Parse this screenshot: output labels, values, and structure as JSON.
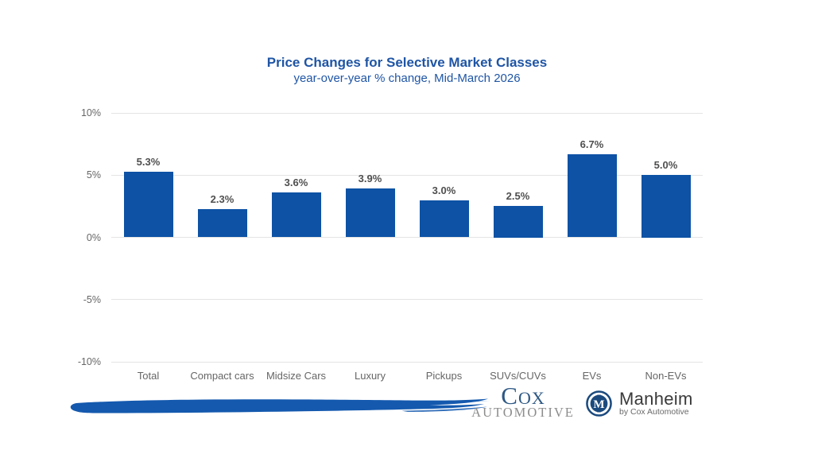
{
  "chart_data": {
    "type": "bar",
    "title": "Price Changes for Selective Market Classes",
    "subtitle": "year-over-year % change, Mid-March 2026",
    "categories": [
      "Total",
      "Compact cars",
      "Midsize Cars",
      "Luxury",
      "Pickups",
      "SUVs/CUVs",
      "EVs",
      "Non-EVs"
    ],
    "values": [
      5.3,
      2.3,
      3.6,
      3.9,
      3.0,
      2.5,
      6.7,
      5.0
    ],
    "value_labels": [
      "5.3%",
      "2.3%",
      "3.6%",
      "3.9%",
      "3.0%",
      "2.5%",
      "6.7%",
      "5.0%"
    ],
    "xlabel": "",
    "ylabel": "",
    "ylim": [
      -10,
      10
    ],
    "yticks": [
      10,
      5,
      0,
      -5,
      -10
    ],
    "ytick_labels": [
      "10%",
      "5%",
      "0%",
      "-5%",
      "-10%"
    ],
    "grid": true,
    "legend": false,
    "bar_color": "#0D52A5"
  },
  "branding": {
    "cox": {
      "name": "Cox",
      "sub": "AUTOMOTIVE"
    },
    "manheim": {
      "name": "Manheim",
      "sub": "by Cox Automotive",
      "badge_letter": "M"
    }
  },
  "colors": {
    "title_blue": "#1F55A5",
    "bar_blue": "#0D52A5",
    "swoosh_blue": "#1459AE",
    "grid_gray": "#e4e4e4",
    "axis_label_gray": "#666666",
    "data_label_gray": "#4f4f4f",
    "cox_blue": "#2D5884",
    "cox_gray": "#8C8C8C",
    "manheim_navy": "#1B4A7E"
  }
}
